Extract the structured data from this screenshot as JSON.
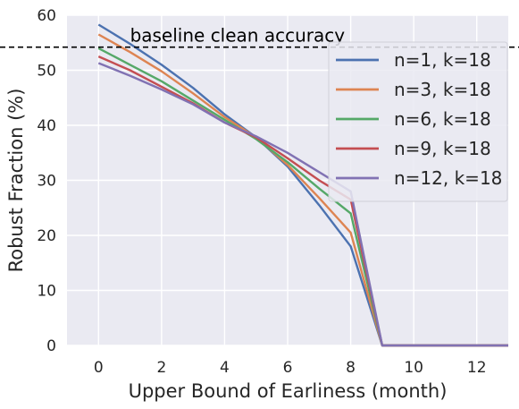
{
  "chart_data": {
    "type": "line",
    "xlabel": "Upper Bound of Earliness (month)",
    "ylabel": "Robust Fraction (%)",
    "xlim": [
      -1,
      13
    ],
    "ylim": [
      0,
      60
    ],
    "xticks": [
      0,
      2,
      4,
      6,
      8,
      10,
      12
    ],
    "yticks": [
      0,
      10,
      20,
      30,
      40,
      50,
      60
    ],
    "grid": true,
    "legend_position": "top-right",
    "background": "#eaeaf2",
    "x": [
      0,
      1,
      2,
      3,
      4,
      5,
      6,
      7,
      8,
      9,
      10,
      11,
      12,
      13
    ],
    "series": [
      {
        "name": "n=1, k=18",
        "color": "#4c72b0",
        "values": [
          58.3,
          54.8,
          51.0,
          46.8,
          42.0,
          37.8,
          32.5,
          25.5,
          18.0,
          0,
          0,
          0,
          0,
          0
        ]
      },
      {
        "name": "n=3, k=18",
        "color": "#dd8452",
        "values": [
          56.5,
          53.3,
          49.8,
          45.8,
          41.5,
          37.8,
          32.8,
          26.8,
          20.5,
          0,
          0,
          0,
          0,
          0
        ]
      },
      {
        "name": "n=6, k=18",
        "color": "#55a868",
        "values": [
          54.0,
          51.0,
          48.0,
          44.5,
          41.0,
          37.5,
          33.3,
          28.5,
          24.0,
          0,
          0,
          0,
          0,
          0
        ]
      },
      {
        "name": "n=9, k=18",
        "color": "#c44e52",
        "values": [
          52.5,
          50.0,
          47.0,
          44.0,
          40.5,
          37.8,
          34.0,
          30.0,
          26.5,
          0,
          0,
          0,
          0,
          0
        ]
      },
      {
        "name": "n=12, k=18",
        "color": "#8172b3",
        "values": [
          51.3,
          49.0,
          46.5,
          43.8,
          40.5,
          38.0,
          35.0,
          31.5,
          28.0,
          0,
          0,
          0,
          0,
          0
        ]
      }
    ],
    "annotations": [
      {
        "label": "baseline clean accuracy",
        "y": 54.2,
        "style": "dashed",
        "color": "#000000"
      }
    ]
  }
}
